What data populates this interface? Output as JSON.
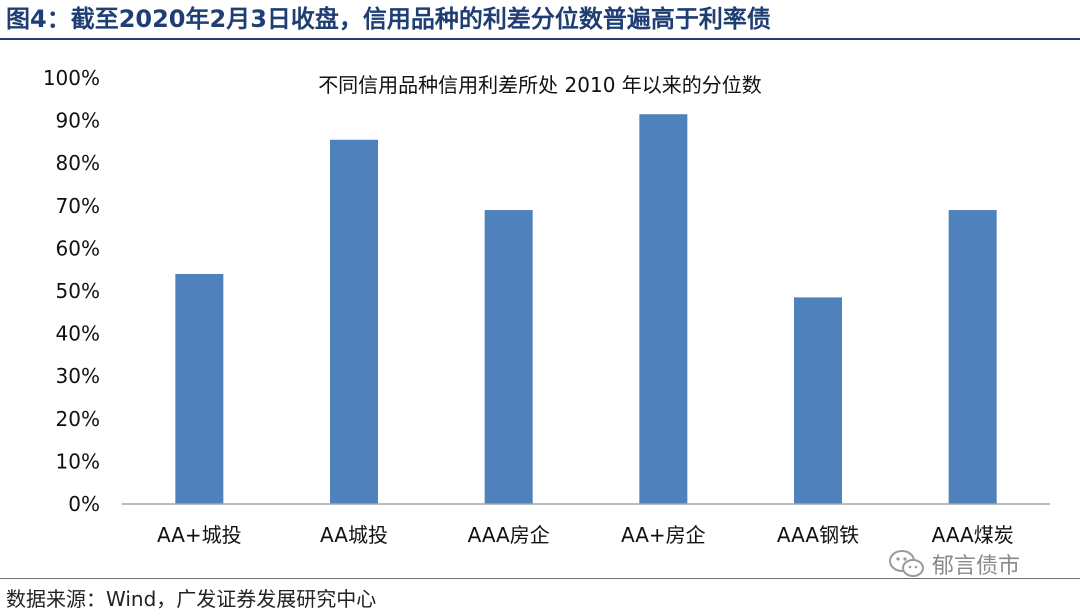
{
  "figure": {
    "title": "图4：截至2020年2月3日收盘，信用品种的利差分位数普遍高于利率债",
    "source": "数据来源：Wind，广发证券发展研究中心",
    "watermark": "郁言债市",
    "watermark_icon": "wechat-icon"
  },
  "chart_data": {
    "type": "bar",
    "title": "不同信用品种信用利差所处 2010 年以来的分位数",
    "xlabel": "",
    "ylabel": "",
    "categories": [
      "AA+城投",
      "AA城投",
      "AAA房企",
      "AA+房企",
      "AAA钢铁",
      "AAA煤炭"
    ],
    "values": [
      0.54,
      0.855,
      0.69,
      0.915,
      0.485,
      0.69
    ],
    "ylim": [
      0,
      1
    ],
    "yticks": [
      "0%",
      "10%",
      "20%",
      "30%",
      "40%",
      "50%",
      "60%",
      "70%",
      "80%",
      "90%",
      "100%"
    ],
    "grid": false,
    "legend": "none",
    "bar_color": "#4f81bd",
    "axis_color": "#a6a6a6"
  }
}
